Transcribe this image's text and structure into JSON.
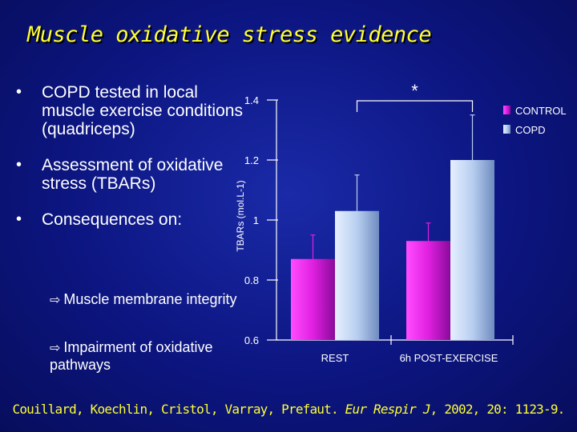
{
  "slide": {
    "title": "Muscle oxidative stress evidence",
    "bullets": [
      {
        "symbol": "•",
        "text": " COPD tested in local muscle exercise conditions (quadriceps)"
      },
      {
        "symbol": "•",
        "text": "Assessment of oxidative stress (TBARs)"
      },
      {
        "symbol": "•",
        "text": "Consequences on:"
      }
    ],
    "sub_bullets": [
      {
        "arrow": "⇨",
        "text": "Muscle membrane integrity"
      },
      {
        "arrow": "⇨",
        "text": "Impairment of oxidative pathways"
      }
    ],
    "citation": {
      "authors": "Couillard, Koechlin, Cristol, Varray, Prefaut. ",
      "journal": "Eur Respir J",
      "rest": ", 2002, 20: 1123-9."
    }
  },
  "chart_data": {
    "type": "bar",
    "ylabel": "TBARs (mol.L-1)",
    "ylim": [
      0.6,
      1.4
    ],
    "yticks": [
      0.6,
      0.8,
      1,
      1.2,
      1.4
    ],
    "ytick_labels": [
      "0.6",
      "0.8",
      "1",
      "1.2",
      "1.4"
    ],
    "categories": [
      "REST",
      "6h POST-EXERCISE"
    ],
    "series": [
      {
        "name": "CONTROL",
        "values": [
          0.87,
          0.93
        ],
        "errors": [
          0.08,
          0.06
        ],
        "color": "#e020e0"
      },
      {
        "name": "COPD",
        "values": [
          1.03,
          1.2
        ],
        "errors": [
          0.12,
          0.15
        ],
        "color": "#b8cff0"
      }
    ],
    "significance": {
      "label": "*",
      "between": "COPD REST vs COPD 6h POST-EXERCISE"
    },
    "legend_position": "top-right",
    "grid": false
  }
}
